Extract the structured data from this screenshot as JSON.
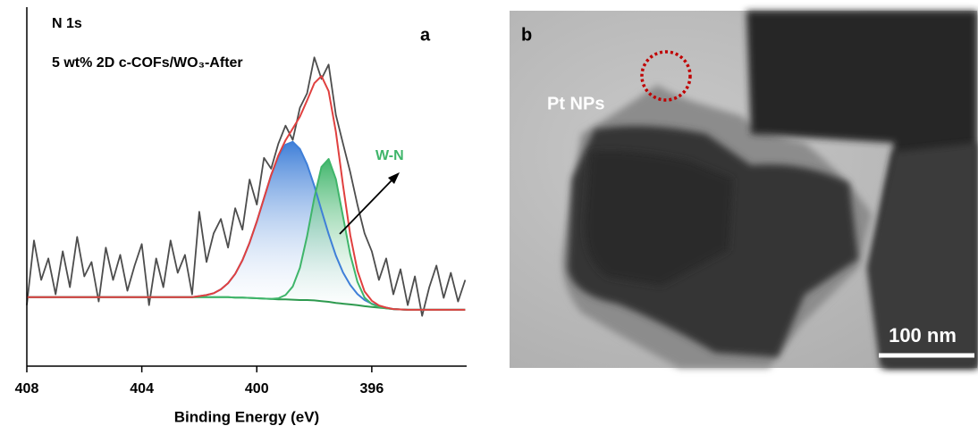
{
  "chart_data": {
    "type": "line",
    "title": "N 1s",
    "subtitle": "5 wt% 2D c-COFs/WO₃-After",
    "panel_label": "a",
    "annotation": "W-N",
    "x_label": "Binding Energy (eV)",
    "xlim": [
      408,
      392.7
    ],
    "ylim": [
      0,
      100
    ],
    "xticks": [
      408,
      404,
      400,
      396
    ],
    "x": [
      408,
      407.75,
      407.5,
      407.25,
      407,
      406.75,
      406.5,
      406.25,
      406,
      405.75,
      405.5,
      405.25,
      405,
      404.75,
      404.5,
      404.25,
      404,
      403.75,
      403.5,
      403.25,
      403,
      402.75,
      402.5,
      402.25,
      402,
      401.75,
      401.5,
      401.25,
      401,
      400.75,
      400.5,
      400.25,
      400,
      399.75,
      399.5,
      399.25,
      399,
      398.75,
      398.5,
      398.25,
      398,
      397.75,
      397.5,
      397.25,
      397,
      396.75,
      396.5,
      396.25,
      396,
      395.75,
      395.5,
      395.25,
      395,
      394.75,
      394.5,
      394.25,
      394,
      393.75,
      393.5,
      393.25,
      393,
      392.75
    ],
    "series": [
      {
        "color": "#4d4d4d",
        "values": [
          17,
          35,
          24,
          30,
          20,
          32,
          22,
          36,
          25,
          29,
          18,
          33,
          24,
          31,
          21,
          28,
          34,
          17,
          30,
          22,
          35,
          26,
          31,
          20,
          43,
          29,
          37,
          41,
          33,
          44,
          38,
          52,
          45,
          58,
          55,
          62,
          67,
          63,
          72,
          76,
          86,
          80,
          84,
          70,
          62,
          54,
          45,
          37,
          32,
          24,
          30,
          20,
          27,
          17,
          25,
          14,
          22,
          28,
          19,
          26,
          18,
          24
        ]
      },
      {
        "color": "#2e9a4f",
        "values": [
          19.2,
          19.2,
          19.2,
          19.2,
          19.2,
          19.2,
          19.2,
          19.2,
          19.2,
          19.2,
          19.2,
          19.2,
          19.2,
          19.2,
          19.2,
          19.2,
          19.2,
          19.2,
          19.2,
          19.2,
          19.2,
          19.2,
          19.2,
          19.2,
          19.2,
          19.2,
          19.2,
          19.2,
          19.2,
          19.1,
          19.1,
          19.0,
          18.9,
          18.8,
          18.7,
          18.6,
          18.6,
          18.5,
          18.4,
          18.4,
          18.3,
          18.1,
          17.9,
          17.6,
          17.4,
          17.2,
          17.0,
          16.7,
          16.5,
          16.3,
          16.1,
          15.9,
          15.8,
          15.7,
          15.7,
          15.7,
          15.7,
          15.7,
          15.7,
          15.7,
          15.7,
          15.7
        ]
      },
      {
        "color": "#3f7fd8",
        "fill": true,
        "values": [
          19.2,
          19.2,
          19.2,
          19.2,
          19.2,
          19.2,
          19.2,
          19.2,
          19.2,
          19.2,
          19.2,
          19.2,
          19.2,
          19.2,
          19.2,
          19.2,
          19.2,
          19.2,
          19.2,
          19.2,
          19.2,
          19.2,
          19.2,
          19.2,
          19.5,
          19.8,
          20.3,
          21.4,
          23.1,
          25.7,
          29.5,
          34.4,
          40.3,
          46.8,
          53.2,
          58.4,
          61.7,
          62.5,
          60.5,
          56.2,
          50.2,
          43.4,
          36.8,
          30.8,
          26.1,
          22.6,
          20.1,
          18.4,
          17.4,
          16.7,
          16.3,
          15.9,
          15.8,
          15.7,
          15.7,
          15.7,
          15.7,
          15.7,
          15.7,
          15.7,
          15.7,
          15.7
        ]
      },
      {
        "color": "#3fb56a",
        "fill": true,
        "values": [
          19.2,
          19.2,
          19.2,
          19.2,
          19.2,
          19.2,
          19.2,
          19.2,
          19.2,
          19.2,
          19.2,
          19.2,
          19.2,
          19.2,
          19.2,
          19.2,
          19.2,
          19.2,
          19.2,
          19.2,
          19.2,
          19.2,
          19.2,
          19.2,
          19.2,
          19.2,
          19.2,
          19.2,
          19.2,
          19.1,
          19.1,
          19.0,
          18.9,
          18.8,
          18.7,
          18.9,
          19.8,
          22.2,
          27.4,
          36.2,
          46.9,
          55.5,
          57.7,
          52.1,
          41.7,
          31.1,
          23.5,
          19.1,
          17.3,
          16.5,
          16.1,
          15.9,
          15.8,
          15.7,
          15.7,
          15.7,
          15.7,
          15.7,
          15.7,
          15.7,
          15.7,
          15.7
        ]
      },
      {
        "color": "#e0403f",
        "values": [
          19.2,
          19.2,
          19.2,
          19.2,
          19.2,
          19.2,
          19.2,
          19.2,
          19.2,
          19.2,
          19.2,
          19.2,
          19.2,
          19.2,
          19.2,
          19.2,
          19.2,
          19.2,
          19.2,
          19.2,
          19.2,
          19.2,
          19.2,
          19.2,
          19.5,
          19.8,
          20.3,
          21.4,
          23.1,
          25.7,
          29.5,
          34.4,
          40.3,
          46.8,
          53.2,
          58.7,
          62.9,
          66.2,
          69.5,
          74.0,
          78.8,
          80.8,
          76.6,
          65.3,
          50.4,
          36.5,
          26.6,
          20.8,
          18.2,
          16.9,
          16.3,
          15.9,
          15.8,
          15.7,
          15.7,
          15.7,
          15.7,
          15.7,
          15.7,
          15.7,
          15.7,
          15.7
        ]
      }
    ]
  },
  "image": {
    "panel_label": "b",
    "annotation": "Pt NPs",
    "scale_bar": "100 nm"
  }
}
